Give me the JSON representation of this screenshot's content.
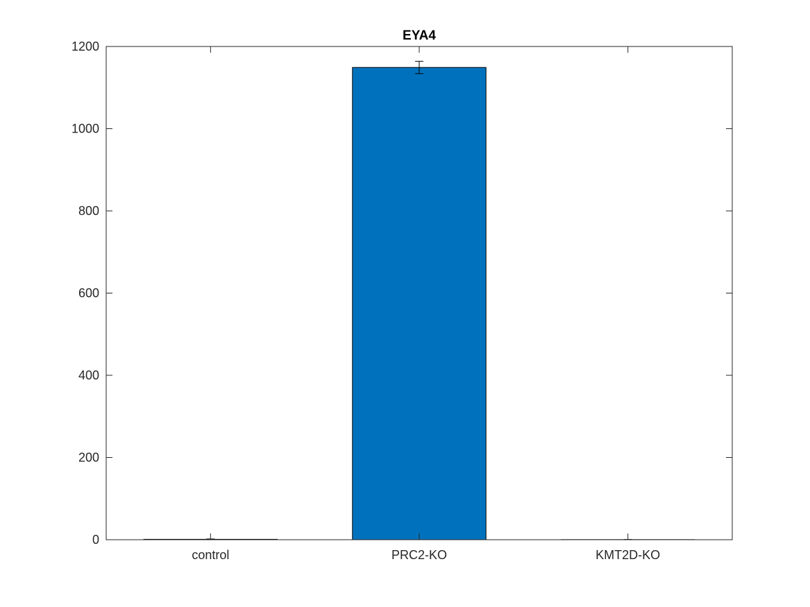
{
  "chart_data": {
    "type": "bar",
    "title": "EYA4",
    "xlabel": "",
    "ylabel": "",
    "categories": [
      "control",
      "PRC2-KO",
      "KMT2D-KO"
    ],
    "values": [
      1,
      1149,
      0.3
    ],
    "errors": [
      0.8,
      15,
      0.3
    ],
    "ylim": [
      0,
      1200
    ],
    "yticks": [
      0,
      200,
      400,
      600,
      800,
      1000,
      1200
    ],
    "grid": false,
    "bar_color": "#0072BD",
    "error_color": "#000000"
  }
}
